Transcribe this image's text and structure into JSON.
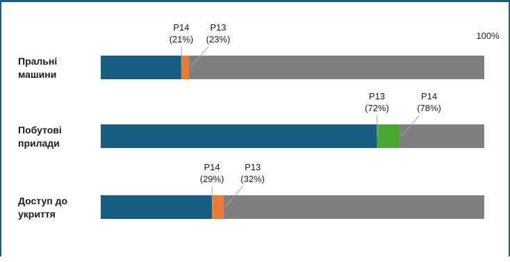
{
  "colors": {
    "base": "#165f82",
    "gap_decrease": "#ee7a32",
    "gap_increase": "#4aa832",
    "rest": "#7f7f7f",
    "frame": "#1a5e80",
    "leader": "#a6a6a6"
  },
  "chart_data": {
    "type": "bar",
    "orientation": "horizontal",
    "stacked": true,
    "title": "",
    "xlim": [
      0,
      100
    ],
    "scale_label": "100%",
    "rounds": [
      "Р13",
      "Р14"
    ],
    "categories": [
      {
        "label_lines": [
          "Пральні",
          "машини"
        ],
        "r13": 23,
        "r14": 21
      },
      {
        "label_lines": [
          "Побутові",
          "прилади"
        ],
        "r13": 72,
        "r14": 78
      },
      {
        "label_lines": [
          "Доступ до",
          "укриття"
        ],
        "r13": 32,
        "r14": 29
      }
    ]
  }
}
